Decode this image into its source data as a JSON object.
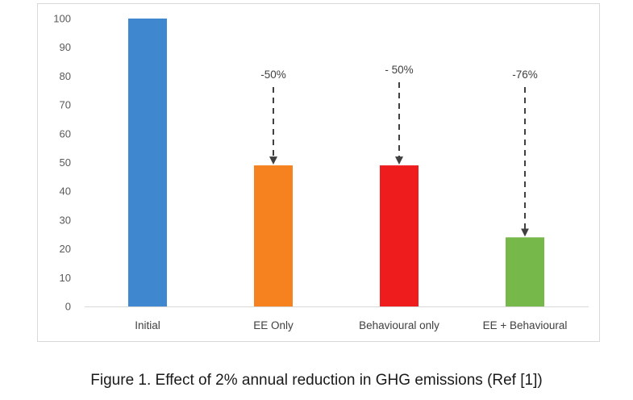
{
  "chart_data": {
    "type": "bar",
    "categories": [
      "Initial",
      "EE Only",
      "Behavioural only",
      "EE + Behavioural"
    ],
    "values": [
      100,
      49,
      49,
      24
    ],
    "colors": [
      "#3f88cf",
      "#f5821f",
      "#ee1c1c",
      "#77b84a"
    ],
    "ylim": [
      0,
      100
    ],
    "yticks": [
      0,
      10,
      20,
      30,
      40,
      50,
      60,
      70,
      80,
      90,
      100
    ],
    "grid": false,
    "annotations": [
      {
        "category": "EE Only",
        "label": "-50%"
      },
      {
        "category": "Behavioural only",
        "label": "- 50%"
      },
      {
        "category": "EE + Behavioural",
        "label": "-76%"
      }
    ]
  },
  "caption": "Figure 1. Effect of 2% annual reduction in GHG emissions (Ref [1])"
}
